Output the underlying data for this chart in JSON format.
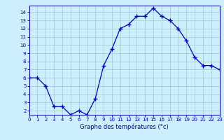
{
  "hours": [
    0,
    1,
    2,
    3,
    4,
    5,
    6,
    7,
    8,
    9,
    10,
    11,
    12,
    13,
    14,
    15,
    16,
    17,
    18,
    19,
    20,
    21,
    22,
    23
  ],
  "temps": [
    6.0,
    6.0,
    5.0,
    2.5,
    2.5,
    1.5,
    2.0,
    1.5,
    3.5,
    7.5,
    9.5,
    12.0,
    12.5,
    13.5,
    13.5,
    14.5,
    13.5,
    13.0,
    12.0,
    10.5,
    8.5,
    7.5,
    7.5,
    7.0
  ],
  "xlim": [
    0,
    23
  ],
  "ylim": [
    1.5,
    14.8
  ],
  "yticks": [
    2,
    3,
    4,
    5,
    6,
    7,
    8,
    9,
    10,
    11,
    12,
    13,
    14
  ],
  "xticks": [
    0,
    1,
    2,
    3,
    4,
    5,
    6,
    7,
    8,
    9,
    10,
    11,
    12,
    13,
    14,
    15,
    16,
    17,
    18,
    19,
    20,
    21,
    22,
    23
  ],
  "xlabel": "Graphe des températures (°c)",
  "line_color": "#0000cc",
  "marker_color": "#0000cc",
  "bg_color": "#cceeff",
  "grid_color": "#99cccc",
  "axis_color": "#0000aa",
  "tick_color": "#0000aa",
  "label_color": "#0000aa"
}
